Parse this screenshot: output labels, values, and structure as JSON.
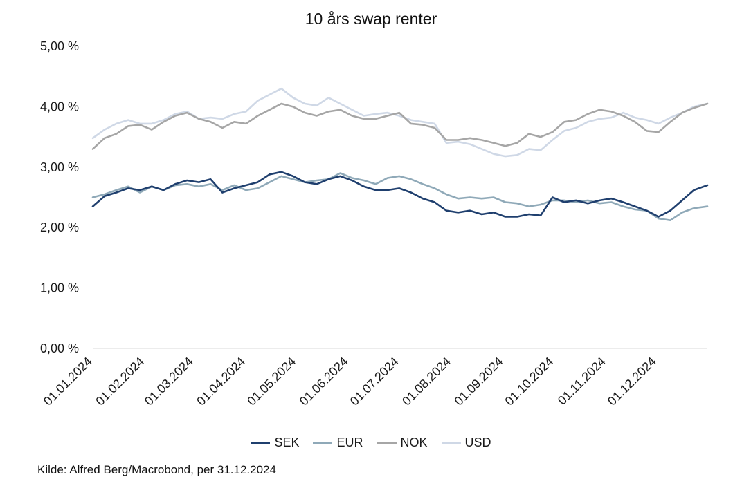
{
  "chart_data": {
    "type": "line",
    "title": "10 års swap renter",
    "source": "Kilde: Alfred Berg/Macrobond, per 31.12.2024",
    "xlabel": "",
    "ylabel": "",
    "ylim": [
      0,
      5
    ],
    "y_ticks": [
      "0,00 %",
      "1,00 %",
      "2,00 %",
      "3,00 %",
      "4,00 %",
      "5,00 %"
    ],
    "x_ticks": [
      "01.01.2024",
      "01.02.2024",
      "01.03.2024",
      "01.04.2024",
      "01.05.2024",
      "01.06.2024",
      "01.07.2024",
      "01.08.2024",
      "01.09.2024",
      "01.10.2024",
      "01.11.2024",
      "01.12.2024"
    ],
    "grid": false,
    "legend_position": "bottom",
    "x": [
      "2024-01-01",
      "2024-01-08",
      "2024-01-15",
      "2024-01-22",
      "2024-01-29",
      "2024-02-05",
      "2024-02-12",
      "2024-02-19",
      "2024-02-26",
      "2024-03-04",
      "2024-03-11",
      "2024-03-18",
      "2024-03-25",
      "2024-04-01",
      "2024-04-08",
      "2024-04-15",
      "2024-04-22",
      "2024-04-29",
      "2024-05-06",
      "2024-05-13",
      "2024-05-20",
      "2024-05-27",
      "2024-06-03",
      "2024-06-10",
      "2024-06-17",
      "2024-06-24",
      "2024-07-01",
      "2024-07-08",
      "2024-07-15",
      "2024-07-22",
      "2024-07-29",
      "2024-08-05",
      "2024-08-12",
      "2024-08-19",
      "2024-08-26",
      "2024-09-02",
      "2024-09-09",
      "2024-09-16",
      "2024-09-23",
      "2024-09-30",
      "2024-10-07",
      "2024-10-14",
      "2024-10-21",
      "2024-10-28",
      "2024-11-04",
      "2024-11-11",
      "2024-11-18",
      "2024-11-25",
      "2024-12-02",
      "2024-12-09",
      "2024-12-16",
      "2024-12-23",
      "2024-12-31"
    ],
    "series": [
      {
        "name": "SEK",
        "color": "#1f3f6e",
        "values": [
          2.35,
          2.52,
          2.58,
          2.65,
          2.62,
          2.68,
          2.62,
          2.72,
          2.78,
          2.75,
          2.8,
          2.58,
          2.65,
          2.7,
          2.75,
          2.88,
          2.92,
          2.85,
          2.75,
          2.72,
          2.8,
          2.85,
          2.78,
          2.68,
          2.62,
          2.62,
          2.65,
          2.58,
          2.48,
          2.42,
          2.28,
          2.25,
          2.28,
          2.22,
          2.25,
          2.18,
          2.18,
          2.22,
          2.2,
          2.5,
          2.42,
          2.45,
          2.4,
          2.45,
          2.48,
          2.42,
          2.35,
          2.28,
          2.18,
          2.28,
          2.45,
          2.62,
          2.7
        ]
      },
      {
        "name": "EUR",
        "color": "#8fa9b8",
        "values": [
          2.5,
          2.55,
          2.62,
          2.68,
          2.58,
          2.68,
          2.62,
          2.7,
          2.72,
          2.68,
          2.72,
          2.62,
          2.7,
          2.62,
          2.65,
          2.75,
          2.85,
          2.8,
          2.75,
          2.78,
          2.8,
          2.9,
          2.82,
          2.78,
          2.72,
          2.82,
          2.85,
          2.8,
          2.72,
          2.65,
          2.55,
          2.48,
          2.5,
          2.48,
          2.5,
          2.42,
          2.4,
          2.35,
          2.38,
          2.45,
          2.45,
          2.42,
          2.45,
          2.4,
          2.42,
          2.35,
          2.3,
          2.28,
          2.15,
          2.12,
          2.25,
          2.32,
          2.35
        ]
      },
      {
        "name": "NOK",
        "color": "#a6a6a6",
        "values": [
          3.3,
          3.48,
          3.55,
          3.68,
          3.7,
          3.62,
          3.75,
          3.85,
          3.9,
          3.8,
          3.75,
          3.65,
          3.75,
          3.72,
          3.85,
          3.95,
          4.05,
          4.0,
          3.9,
          3.85,
          3.92,
          3.95,
          3.85,
          3.8,
          3.8,
          3.85,
          3.9,
          3.72,
          3.7,
          3.65,
          3.45,
          3.45,
          3.48,
          3.45,
          3.4,
          3.35,
          3.4,
          3.55,
          3.5,
          3.58,
          3.75,
          3.78,
          3.88,
          3.95,
          3.92,
          3.85,
          3.75,
          3.6,
          3.58,
          3.75,
          3.9,
          3.98,
          4.05
        ]
      },
      {
        "name": "USD",
        "color": "#cfd8e6",
        "values": [
          3.48,
          3.62,
          3.72,
          3.78,
          3.72,
          3.72,
          3.78,
          3.88,
          3.92,
          3.8,
          3.82,
          3.8,
          3.88,
          3.92,
          4.1,
          4.2,
          4.3,
          4.15,
          4.05,
          4.02,
          4.15,
          4.05,
          3.95,
          3.85,
          3.88,
          3.9,
          3.85,
          3.78,
          3.75,
          3.72,
          3.4,
          3.42,
          3.38,
          3.3,
          3.22,
          3.18,
          3.2,
          3.3,
          3.28,
          3.45,
          3.6,
          3.65,
          3.75,
          3.8,
          3.82,
          3.9,
          3.82,
          3.78,
          3.72,
          3.82,
          3.9,
          4.0,
          4.05
        ]
      }
    ]
  }
}
